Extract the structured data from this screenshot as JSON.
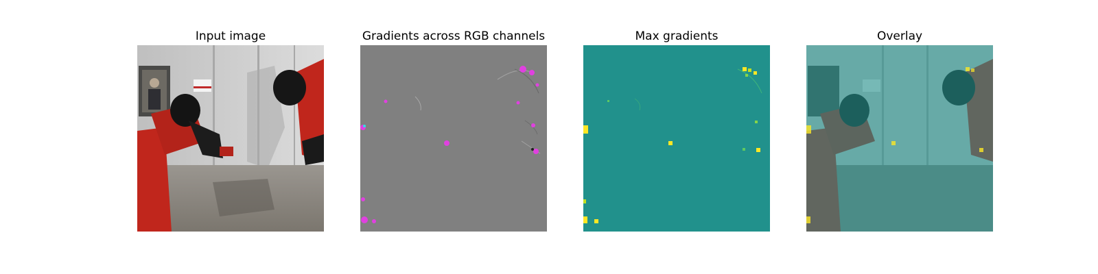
{
  "figure": {
    "panels": [
      {
        "title": "Input image"
      },
      {
        "title": "Gradients across RGB channels"
      },
      {
        "title": "Max gradients"
      },
      {
        "title": "Overlay"
      }
    ]
  },
  "colors": {
    "max_gradient_background": "#21918c",
    "max_gradient_peak": "#fde725",
    "rgb_gradient_background": "#808080",
    "rgb_gradient_highlight": "#e040e0",
    "robot_arm_red": "#c0261c"
  }
}
